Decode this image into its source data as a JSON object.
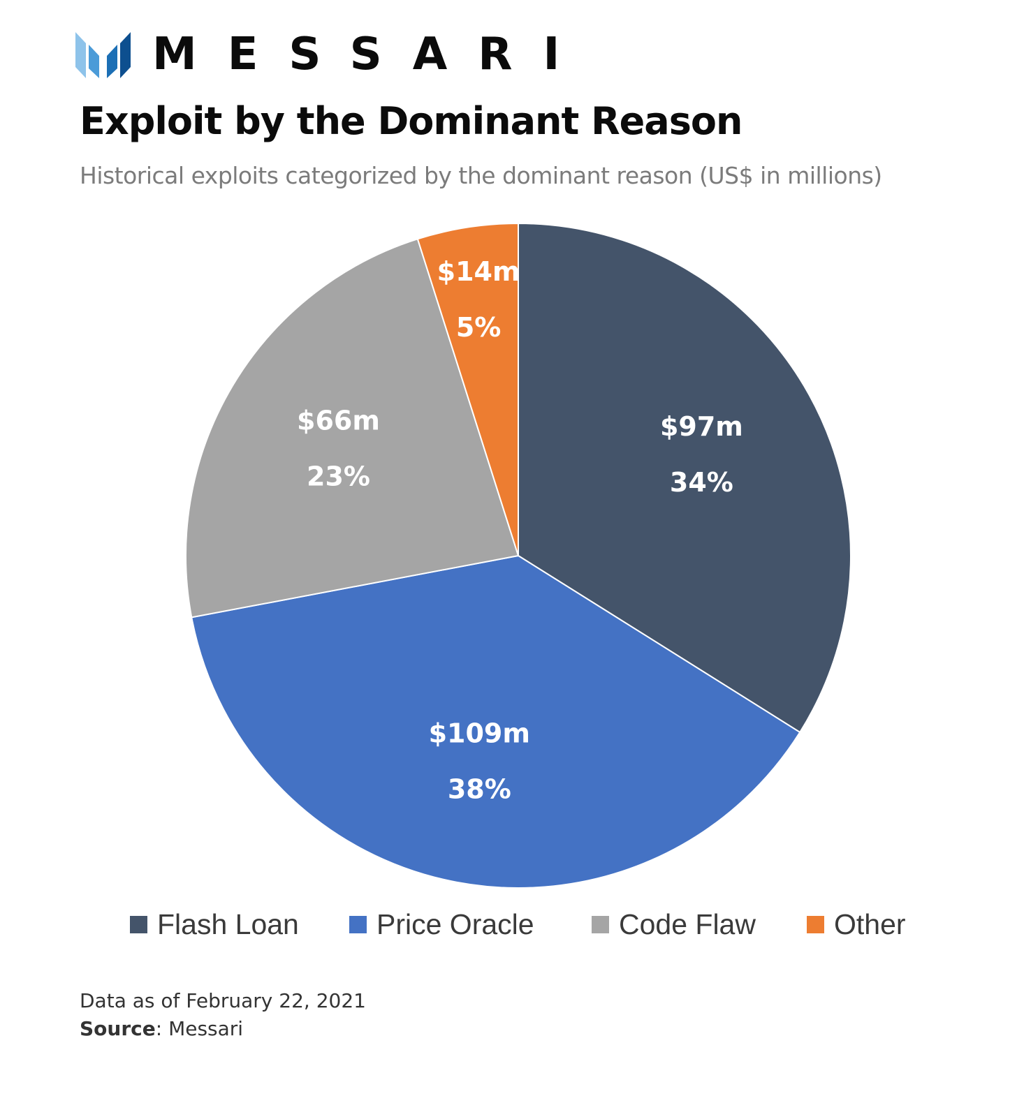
{
  "brand": {
    "name": "MESSARI",
    "colors": [
      "#8ec3ea",
      "#4b9bd8",
      "#1c6fb5",
      "#0d4f8f"
    ]
  },
  "chart_data": {
    "type": "pie",
    "title": "Exploit by the Dominant Reason",
    "subtitle": "Historical exploits categorized by the dominant reason (US$ in millions)",
    "unit": "US$ in millions",
    "slices": [
      {
        "name": "Flash Loan",
        "value": 97,
        "percent": 34,
        "value_label": "$97m",
        "percent_label": "34%",
        "color": "#44546a"
      },
      {
        "name": "Price Oracle",
        "value": 109,
        "percent": 38,
        "value_label": "$109m",
        "percent_label": "38%",
        "color": "#4472c4"
      },
      {
        "name": "Code Flaw",
        "value": 66,
        "percent": 23,
        "value_label": "$66m",
        "percent_label": "23%",
        "color": "#a5a5a5"
      },
      {
        "name": "Other",
        "value": 14,
        "percent": 5,
        "value_label": "$14m",
        "percent_label": "5%",
        "color": "#ed7d31"
      }
    ],
    "start_angle": "12 o'clock, clockwise",
    "legend_position": "bottom"
  },
  "footnote": {
    "date_text": "Data as of February 22, 2021",
    "source_label": "Source",
    "source_value": "Messari"
  }
}
